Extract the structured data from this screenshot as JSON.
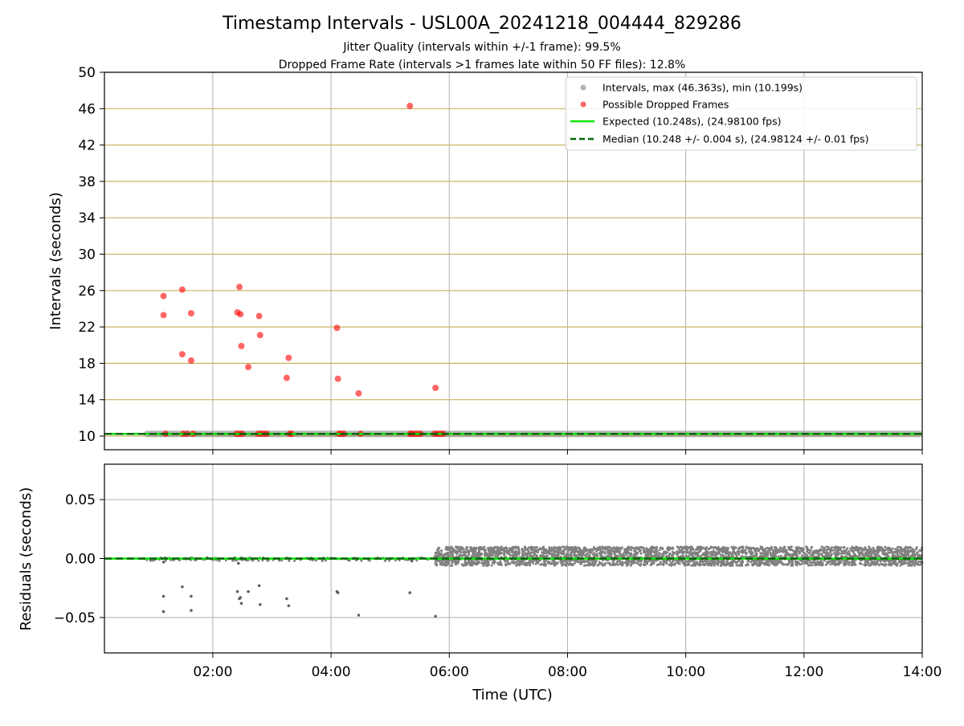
{
  "title": "Timestamp Intervals - USL00A_20241218_004444_829286",
  "subtitle_lines": [
    "Jitter Quality (intervals within +/-1 frame): 99.5%",
    "Dropped Frame Rate (intervals >1 frames late within 50 FF files): 12.8%"
  ],
  "colors": {
    "intervals": "#808080",
    "dropped": "#ff0000",
    "expected": "#00e600",
    "median": "#006400",
    "hgrid_top": "#c8b464",
    "grid": "#b0b0b0"
  },
  "chart_data": [
    {
      "type": "scatter",
      "panel": "top",
      "ylabel": "Intervals (seconds)",
      "xlabel": "",
      "ylim": [
        8.5,
        50
      ],
      "yticks": [
        10,
        14,
        18,
        22,
        26,
        30,
        34,
        38,
        42,
        46,
        50
      ],
      "xlim": [
        "00:10",
        "14:00"
      ],
      "x_units": "time of day (UTC)",
      "grid": "vertical gray + horizontal tan",
      "legend": "top-right",
      "legend_entries": [
        "Intervals, max (46.363s), min (10.199s)",
        "Possible Dropped Frames",
        "Expected (10.248s), (24.98100 fps)",
        "Median (10.248 +/- 0.004 s), (24.98124 +/- 0.01 fps)"
      ],
      "series": [
        {
          "name": "Intervals, max (46.363s), min (10.199s)",
          "kind": "dense_band",
          "x_range": [
            "00:50",
            "14:00"
          ],
          "y": 10.248
        },
        {
          "name": "Possible Dropped Frames",
          "kind": "points",
          "points": [
            [
              "01:10",
              25.4
            ],
            [
              "01:10",
              23.3
            ],
            [
              "01:29",
              26.1
            ],
            [
              "01:29",
              19.0
            ],
            [
              "01:38",
              23.5
            ],
            [
              "01:38",
              18.3
            ],
            [
              "02:25",
              23.6
            ],
            [
              "02:27",
              26.4
            ],
            [
              "02:28",
              23.4
            ],
            [
              "02:29",
              19.9
            ],
            [
              "02:36",
              17.6
            ],
            [
              "02:47",
              23.2
            ],
            [
              "02:48",
              21.1
            ],
            [
              "03:15",
              16.4
            ],
            [
              "03:17",
              18.6
            ],
            [
              "04:06",
              21.9
            ],
            [
              "04:07",
              16.3
            ],
            [
              "04:28",
              14.7
            ],
            [
              "05:20",
              46.3
            ],
            [
              "05:46",
              15.3
            ],
            [
              "01:12",
              10.25
            ],
            [
              "01:30",
              10.25
            ],
            [
              "01:34",
              10.25
            ],
            [
              "01:40",
              10.25
            ],
            [
              "02:24",
              10.25
            ],
            [
              "02:27",
              10.25
            ],
            [
              "02:30",
              10.25
            ],
            [
              "02:46",
              10.25
            ],
            [
              "02:49",
              10.25
            ],
            [
              "02:52",
              10.25
            ],
            [
              "02:55",
              10.25
            ],
            [
              "03:18",
              10.25
            ],
            [
              "03:20",
              10.25
            ],
            [
              "04:08",
              10.25
            ],
            [
              "04:10",
              10.25
            ],
            [
              "04:13",
              10.25
            ],
            [
              "04:30",
              10.25
            ],
            [
              "05:20",
              10.25
            ],
            [
              "05:22",
              10.25
            ],
            [
              "05:25",
              10.25
            ],
            [
              "05:28",
              10.25
            ],
            [
              "05:31",
              10.25
            ],
            [
              "05:45",
              10.25
            ],
            [
              "05:48",
              10.25
            ],
            [
              "05:51",
              10.25
            ],
            [
              "05:54",
              10.25
            ]
          ]
        },
        {
          "name": "Expected (10.248s), (24.98100 fps)",
          "kind": "hline",
          "y": 10.248
        },
        {
          "name": "Median (10.248 +/- 0.004 s), (24.98124 +/- 0.01 fps)",
          "kind": "hline_dashed",
          "y": 10.248
        }
      ]
    },
    {
      "type": "scatter",
      "panel": "bottom",
      "ylabel": "Residuals (seconds)",
      "xlabel": "Time (UTC)",
      "ylim": [
        -0.08,
        0.08
      ],
      "yticks": [
        0.05,
        0.0,
        -0.05
      ],
      "ytick_labels": [
        "0.05",
        "0.00",
        "−0.05"
      ],
      "xlim": [
        "00:10",
        "14:00"
      ],
      "xticks": [
        "02:00",
        "04:00",
        "06:00",
        "08:00",
        "10:00",
        "12:00",
        "14:00"
      ],
      "grid": "both, gray",
      "series": [
        {
          "name": "residuals_points",
          "kind": "points",
          "points": [
            [
              "01:10",
              -0.045
            ],
            [
              "01:10",
              -0.032
            ],
            [
              "01:10",
              -0.003
            ],
            [
              "01:29",
              -0.024
            ],
            [
              "01:38",
              -0.044
            ],
            [
              "01:38",
              -0.032
            ],
            [
              "02:25",
              -0.028
            ],
            [
              "02:26",
              -0.004
            ],
            [
              "02:27",
              -0.034
            ],
            [
              "02:28",
              -0.033
            ],
            [
              "02:29",
              -0.038
            ],
            [
              "02:36",
              -0.028
            ],
            [
              "02:47",
              -0.023
            ],
            [
              "02:48",
              -0.039
            ],
            [
              "03:15",
              -0.034
            ],
            [
              "03:17",
              -0.04
            ],
            [
              "04:06",
              -0.028
            ],
            [
              "04:07",
              -0.029
            ],
            [
              "04:28",
              -0.048
            ],
            [
              "05:20",
              -0.029
            ],
            [
              "05:22",
              -0.002
            ],
            [
              "05:46",
              -0.049
            ]
          ]
        },
        {
          "name": "residuals_band",
          "kind": "dense_band",
          "x_range": [
            "05:45",
            "14:00"
          ],
          "y_range": [
            -0.006,
            0.01
          ]
        },
        {
          "name": "residuals_sparse",
          "kind": "dense_band",
          "x_range": [
            "00:50",
            "05:45"
          ],
          "y_range": [
            -0.002,
            0.001
          ]
        },
        {
          "name": "zero_expected",
          "kind": "hline",
          "y": 0.0
        },
        {
          "name": "zero_median",
          "kind": "hline_dashed",
          "y": 0.0
        }
      ]
    }
  ]
}
